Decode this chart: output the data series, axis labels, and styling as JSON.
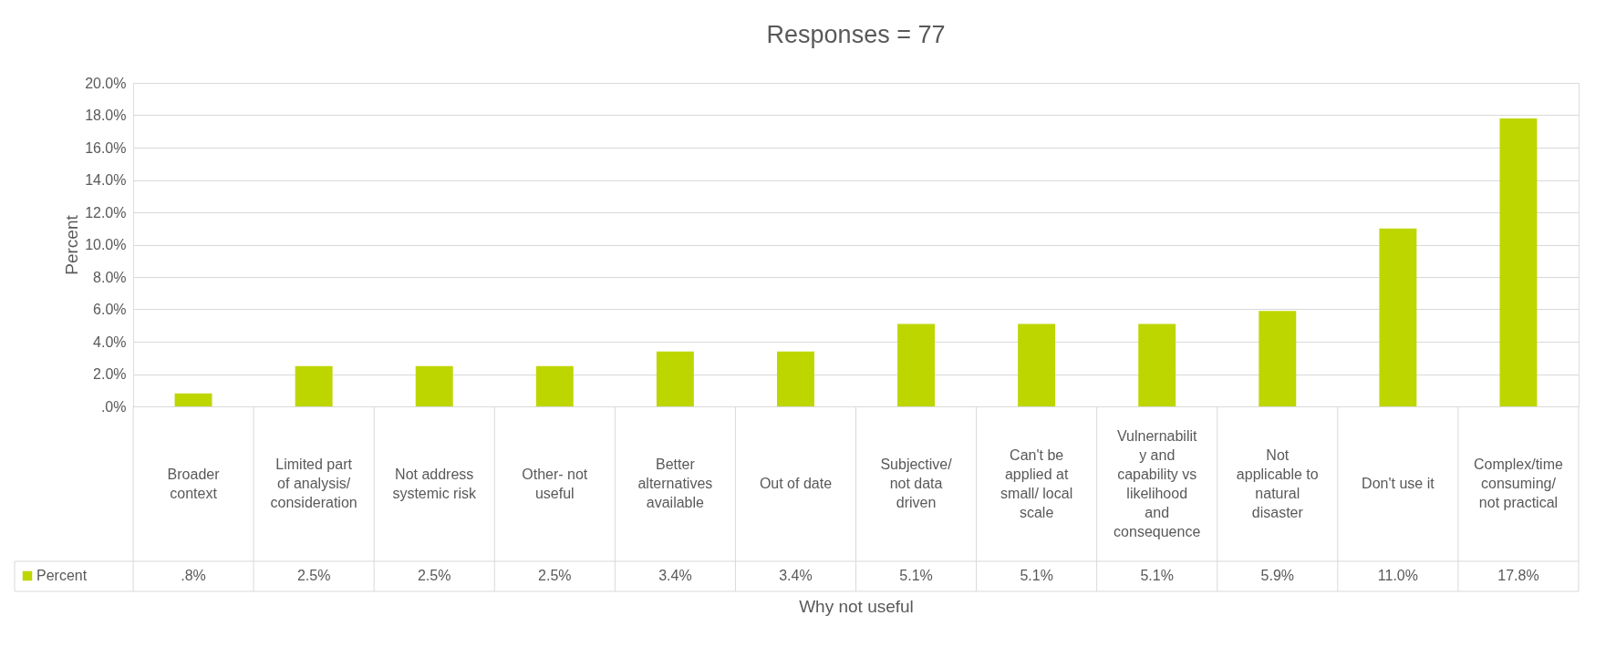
{
  "chart_data": {
    "type": "bar",
    "title": "Responses = 77",
    "xlabel": "Why not useful",
    "ylabel": "Percent",
    "categories": [
      "Broader context",
      "Limited part of analysis/ consideration",
      "Not address systemic risk",
      "Other- not useful",
      "Better alternatives available",
      "Out of date",
      "Subjective/ not data driven",
      "Can't be applied at small/ local scale",
      "Vulnernability and capability vs likelihood and consequence",
      "Not applicable to natural disaster",
      "Don't use it",
      "Complex/time consuming/ not practical"
    ],
    "series": [
      {
        "name": "Percent",
        "color": "#bed600",
        "values": [
          0.8,
          2.5,
          2.5,
          2.5,
          3.4,
          3.4,
          5.1,
          5.1,
          5.1,
          5.9,
          11.0,
          17.8
        ],
        "value_labels": [
          ".8%",
          "2.5%",
          "2.5%",
          "2.5%",
          "3.4%",
          "3.4%",
          "5.1%",
          "5.1%",
          "5.1%",
          "5.9%",
          "11.0%",
          "17.8%"
        ]
      }
    ],
    "ylim": [
      0,
      20
    ],
    "yticks": [
      {
        "value": 0,
        "label": ".0%"
      },
      {
        "value": 2,
        "label": "2.0%"
      },
      {
        "value": 4,
        "label": "4.0%"
      },
      {
        "value": 6,
        "label": "6.0%"
      },
      {
        "value": 8,
        "label": "8.0%"
      },
      {
        "value": 10,
        "label": "10.0%"
      },
      {
        "value": 12,
        "label": "12.0%"
      },
      {
        "value": 14,
        "label": "14.0%"
      },
      {
        "value": 16,
        "label": "16.0%"
      },
      {
        "value": 18,
        "label": "18.0%"
      },
      {
        "value": 20,
        "label": "20.0%"
      }
    ],
    "grid": "y",
    "legend": "bottom left"
  }
}
